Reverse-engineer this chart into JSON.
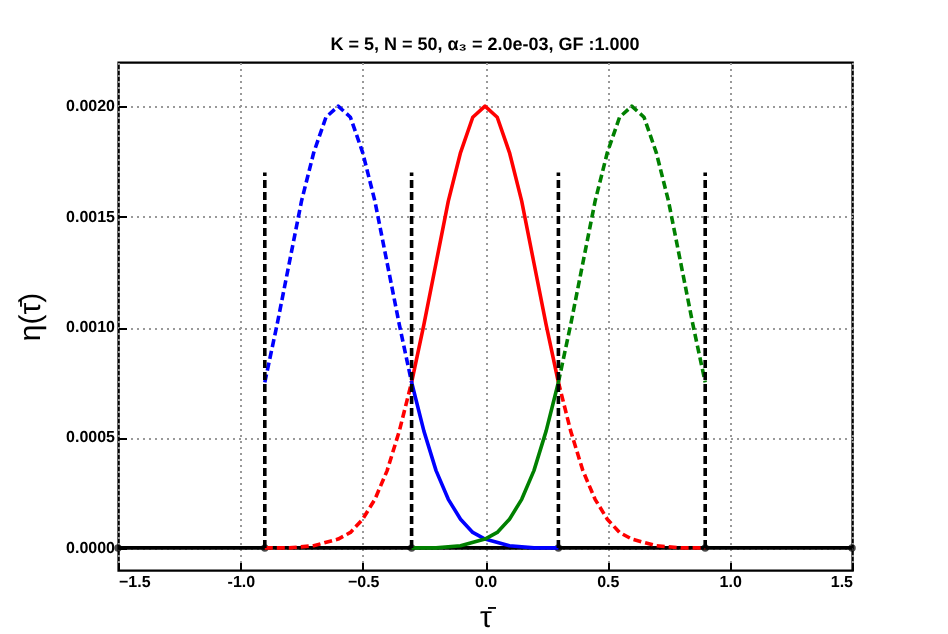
{
  "chart_data": {
    "type": "line",
    "title": "K = 5, N = 50, α₃ = 2.0e-03, GF :1.000",
    "xlabel": "τ̄",
    "ylabel": "η(τ̄)",
    "xlim": [
      -1.5,
      1.5
    ],
    "xticks": [
      -1.5,
      {
        "value": -1,
        "label": "-1.0"
      },
      -0.5,
      {
        "value": 0,
        "label": "0.0"
      },
      0.5,
      {
        "value": 1,
        "label": "1.0"
      },
      1.5
    ],
    "ylim": [
      -0.0001,
      0.0022
    ],
    "yticks": [
      {
        "value": 0,
        "label": "0.0000"
      },
      0.0005,
      {
        "value": 0.001,
        "label": "0.0010"
      },
      0.0015,
      {
        "value": 0.002,
        "label": "0.0020"
      }
    ],
    "grid": true,
    "series": [
      {
        "color": "#000000",
        "line_style": "solid",
        "marker": "circle",
        "x": [
          -1.5,
          -0.9,
          -0.3,
          0.3,
          0.9,
          1.5
        ],
        "values": [
          0,
          0,
          0,
          0,
          0,
          0
        ]
      },
      {
        "color": "#ff0000",
        "line_style": "dashed",
        "x": [
          -0.9,
          -0.8,
          -0.7,
          -0.6,
          -0.55,
          -0.5,
          -0.45,
          -0.4,
          -0.35,
          -0.3
        ],
        "values": [
          0,
          0,
          1e-05,
          4e-05,
          7e-05,
          0.00013,
          0.00022,
          0.00035,
          0.00053,
          0.00075
        ]
      },
      {
        "color": "#ff0000",
        "line_style": "solid",
        "x": [
          -0.3,
          -0.25,
          -0.2,
          -0.15,
          -0.1,
          -0.05,
          0,
          0.05,
          0.1,
          0.15,
          0.2,
          0.25,
          0.3
        ],
        "values": [
          0.00075,
          0.00101,
          0.00129,
          0.00157,
          0.00179,
          0.00195,
          0.002,
          0.00195,
          0.00179,
          0.00157,
          0.00129,
          0.00101,
          0.00075
        ]
      },
      {
        "color": "#ff0000",
        "line_style": "dashed",
        "x": [
          0.3,
          0.35,
          0.4,
          0.45,
          0.5,
          0.55,
          0.6,
          0.7,
          0.8,
          0.9
        ],
        "values": [
          0.00075,
          0.00053,
          0.00035,
          0.00022,
          0.00013,
          7e-05,
          4e-05,
          1e-05,
          0,
          0
        ]
      },
      {
        "color": "#0000ff",
        "line_style": "dashed",
        "x": [
          -0.9,
          -0.85,
          -0.8,
          -0.75,
          -0.7,
          -0.65,
          -0.6,
          -0.55,
          -0.5,
          -0.45,
          -0.4,
          -0.35,
          -0.3
        ],
        "values": [
          0.00075,
          0.00101,
          0.00129,
          0.00157,
          0.00179,
          0.00195,
          0.002,
          0.00195,
          0.00179,
          0.00157,
          0.00129,
          0.00101,
          0.00075
        ]
      },
      {
        "color": "#0000ff",
        "line_style": "solid",
        "x": [
          -0.3,
          -0.25,
          -0.2,
          -0.15,
          -0.1,
          -0.05,
          0,
          0.1,
          0.2,
          0.3
        ],
        "values": [
          0.00075,
          0.00053,
          0.00035,
          0.00022,
          0.00013,
          7e-05,
          4e-05,
          1e-05,
          0,
          0
        ]
      },
      {
        "color": "#008000",
        "line_style": "solid",
        "x": [
          -0.3,
          -0.2,
          -0.1,
          0,
          0.05,
          0.1,
          0.15,
          0.2,
          0.25,
          0.3
        ],
        "values": [
          0,
          0,
          1e-05,
          4e-05,
          7e-05,
          0.00013,
          0.00022,
          0.00035,
          0.00053,
          0.00075
        ]
      },
      {
        "color": "#008000",
        "line_style": "dashed",
        "x": [
          0.3,
          0.35,
          0.4,
          0.45,
          0.5,
          0.55,
          0.6,
          0.65,
          0.7,
          0.75,
          0.8,
          0.85,
          0.9
        ],
        "values": [
          0.00075,
          0.00101,
          0.00129,
          0.00157,
          0.00179,
          0.00195,
          0.002,
          0.00195,
          0.00179,
          0.00157,
          0.00129,
          0.00101,
          0.00075
        ]
      },
      {
        "color": "#000000",
        "line_style": "dashed",
        "x": [
          -0.9,
          -0.9
        ],
        "values": [
          0,
          0.0017
        ]
      },
      {
        "color": "#000000",
        "line_style": "dashed",
        "x": [
          -0.3,
          -0.3
        ],
        "values": [
          0,
          0.0017
        ]
      },
      {
        "color": "#000000",
        "line_style": "dashed",
        "x": [
          0.3,
          0.3
        ],
        "values": [
          0,
          0.0017
        ]
      },
      {
        "color": "#000000",
        "line_style": "dashed",
        "x": [
          0.9,
          0.9
        ],
        "values": [
          0,
          0.0017
        ]
      }
    ]
  }
}
